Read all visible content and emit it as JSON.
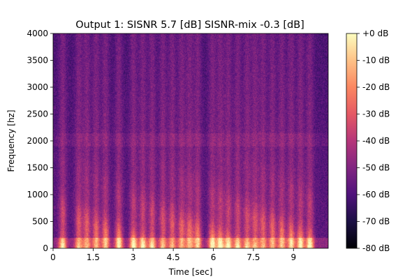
{
  "chart_data": {
    "type": "heatmap",
    "title": "Output 1: SISNR 5.7 [dB] SISNR-mix -0.3 [dB]",
    "xlabel": "Time [sec]",
    "ylabel": "Frequency [hz]",
    "xlim": [
      0,
      10.3
    ],
    "ylim": [
      0,
      4000
    ],
    "x_ticks": [
      0,
      1.5,
      3,
      4.5,
      6,
      7.5,
      9
    ],
    "x_tick_labels": [
      "0",
      "1.5",
      "3",
      "4.5",
      "6",
      "7.5",
      "9"
    ],
    "y_ticks": [
      0,
      500,
      1000,
      1500,
      2000,
      2500,
      3000,
      3500,
      4000
    ],
    "y_tick_labels": [
      "0",
      "500",
      "1000",
      "1500",
      "2000",
      "2500",
      "3000",
      "3500",
      "4000"
    ],
    "colorbar": {
      "label_ticks": [
        0,
        -10,
        -20,
        -30,
        -40,
        -50,
        -60,
        -70,
        -80
      ],
      "tick_labels": [
        "+0 dB",
        "-10 dB",
        "-20 dB",
        "-30 dB",
        "-40 dB",
        "-50 dB",
        "-60 dB",
        "-70 dB",
        "-80 dB"
      ],
      "range": [
        -80,
        0
      ],
      "colormap": "magma",
      "colors": [
        "#000004",
        "#1c1044",
        "#4f127b",
        "#812581",
        "#b5367a",
        "#e55964",
        "#fb8761",
        "#fec287",
        "#fcfdbf"
      ]
    },
    "grid": false,
    "legend": "colorbar right",
    "energy_onsets_sec": [
      0.35,
      0.95,
      1.25,
      1.6,
      1.95,
      2.45,
      3.0,
      3.35,
      3.7,
      4.1,
      4.45,
      4.8,
      5.1,
      5.4,
      5.95,
      6.25,
      6.55,
      6.9,
      7.25,
      7.55,
      7.85,
      8.2,
      8.55,
      8.9,
      9.25,
      9.6
    ]
  }
}
